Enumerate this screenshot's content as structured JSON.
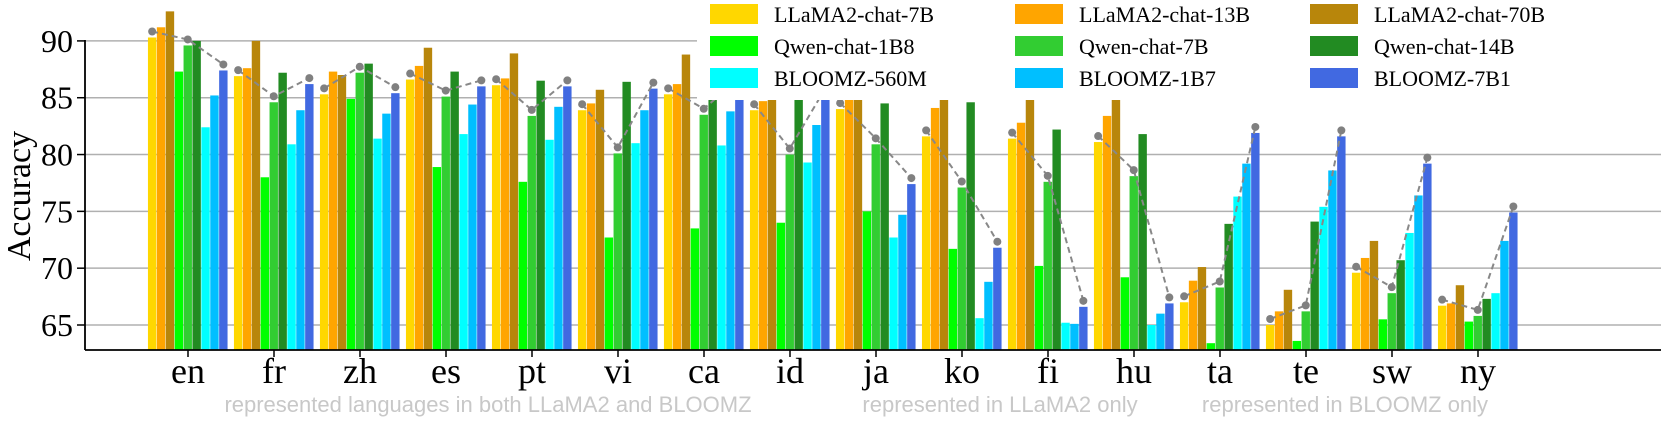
{
  "chart_data": {
    "type": "bar",
    "ylabel": "Accuracy",
    "xlabel": "",
    "ylim": [
      62.8,
      93.6
    ],
    "yticks": [
      65,
      70,
      75,
      80,
      85,
      90
    ],
    "grid": "horizontal",
    "legend_position": "top-right",
    "categories": [
      "en",
      "fr",
      "zh",
      "es",
      "pt",
      "vi",
      "ca",
      "id",
      "ja",
      "ko",
      "fi",
      "hu",
      "ta",
      "te",
      "sw",
      "ny"
    ],
    "series": [
      {
        "name": "LLaMA2-chat-7B",
        "color": "#FFD700",
        "values": [
          90.3,
          86.9,
          85.3,
          86.6,
          86.1,
          83.9,
          85.3,
          83.9,
          84.0,
          81.6,
          81.4,
          81.1,
          67.0,
          65.0,
          69.6,
          66.7
        ]
      },
      {
        "name": "LLaMA2-chat-13B",
        "color": "#FFA500",
        "values": [
          91.2,
          87.6,
          87.3,
          87.8,
          86.7,
          84.5,
          86.2,
          84.7,
          85.2,
          84.1,
          82.8,
          83.4,
          68.9,
          66.2,
          70.9,
          66.9
        ]
      },
      {
        "name": "LLaMA2-chat-70B",
        "color": "#B8860B",
        "values": [
          92.6,
          90.0,
          87.0,
          89.4,
          88.9,
          85.7,
          88.8,
          86.9,
          86.2,
          85.0,
          85.1,
          86.0,
          70.1,
          68.1,
          72.4,
          68.5
        ]
      },
      {
        "name": "Qwen-chat-1B8",
        "color": "#00FF00",
        "values": [
          87.3,
          78.0,
          84.9,
          78.9,
          77.6,
          72.7,
          73.5,
          74.0,
          75.0,
          71.7,
          70.2,
          69.2,
          63.4,
          63.6,
          65.5,
          65.3
        ]
      },
      {
        "name": "Qwen-chat-7B",
        "color": "#32CD32",
        "values": [
          89.6,
          84.6,
          87.2,
          85.1,
          83.4,
          80.1,
          83.5,
          80.0,
          80.9,
          77.1,
          77.6,
          78.1,
          68.3,
          66.2,
          67.8,
          65.8
        ]
      },
      {
        "name": "Qwen-chat-14B",
        "color": "#228B22",
        "values": [
          90.0,
          87.2,
          88.0,
          87.3,
          86.5,
          86.4,
          86.2,
          85.9,
          84.5,
          84.6,
          82.2,
          81.8,
          73.9,
          74.1,
          70.7,
          67.3
        ]
      },
      {
        "name": "BLOOMZ-560M",
        "color": "#00FFFF",
        "values": [
          82.4,
          80.9,
          81.4,
          81.8,
          81.3,
          81.0,
          80.8,
          79.3,
          72.7,
          65.6,
          65.2,
          65.0,
          76.3,
          75.4,
          73.1,
          67.8
        ]
      },
      {
        "name": "BLOOMZ-1B7",
        "color": "#00BFFF",
        "values": [
          85.2,
          83.9,
          83.6,
          84.4,
          84.2,
          83.9,
          83.8,
          82.6,
          74.7,
          68.8,
          65.1,
          66.0,
          79.2,
          78.6,
          76.4,
          72.4
        ]
      },
      {
        "name": "BLOOMZ-7B1",
        "color": "#4169E1",
        "values": [
          87.4,
          86.2,
          85.4,
          86.0,
          86.0,
          85.8,
          86.2,
          85.3,
          77.4,
          71.8,
          66.6,
          66.9,
          81.9,
          81.6,
          79.2,
          74.9
        ]
      }
    ],
    "annotations": [
      "represented languages in both LLaMA2 and BLOOMZ",
      "represented in LLaMA2 only",
      "represented in BLOOMZ only"
    ]
  }
}
